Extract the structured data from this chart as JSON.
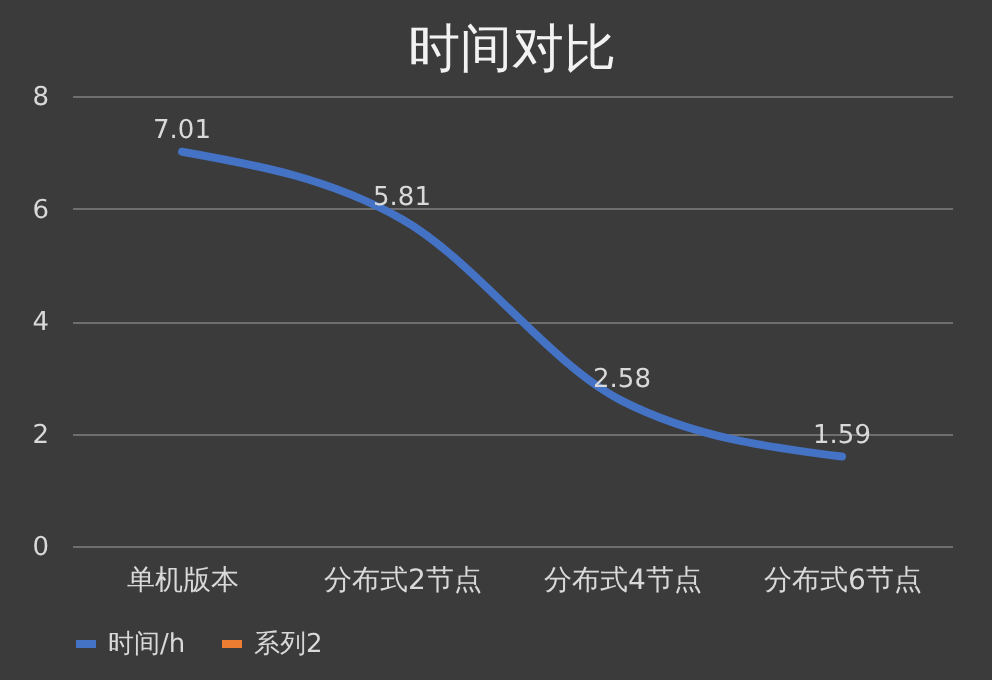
{
  "chart_data": {
    "type": "line",
    "title": "时间对比",
    "categories": [
      "单机版本",
      "分布式2节点",
      "分布式4节点",
      "分布式6节点"
    ],
    "series": [
      {
        "name": "时间/h",
        "color": "#4472c4",
        "values": [
          7.01,
          5.81,
          2.58,
          1.59
        ]
      },
      {
        "name": "系列2",
        "color": "#ed7d31",
        "values": [
          null,
          null,
          null,
          null
        ]
      }
    ],
    "ylim": [
      0,
      8
    ],
    "yticks": [
      0,
      2,
      4,
      6,
      8
    ],
    "grid": "y",
    "legend": "bottom",
    "data_labels": true,
    "marker": "none",
    "line_style": "solid"
  }
}
